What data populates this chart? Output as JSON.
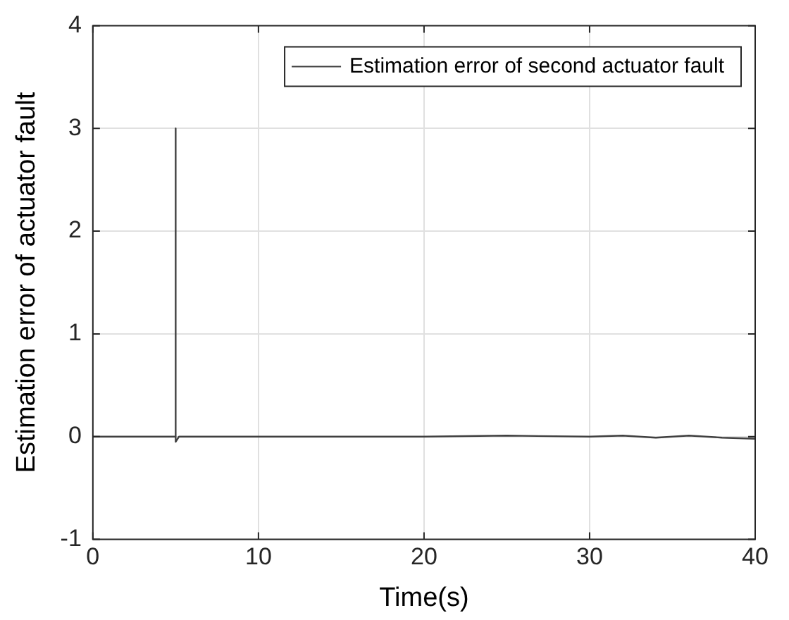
{
  "chart_data": {
    "type": "line",
    "xlabel": "Time(s)",
    "ylabel": "Estimation error of actuator fault",
    "x": [
      0,
      5,
      5,
      5,
      5.2,
      10,
      15,
      20,
      25,
      30,
      32,
      34,
      36,
      38,
      40
    ],
    "series": [
      {
        "name": "Estimation error of second actuator fault",
        "color": "#404040",
        "values": [
          0,
          0,
          3,
          -0.05,
          0,
          0,
          0,
          0,
          0.01,
          0,
          0.01,
          -0.01,
          0.01,
          -0.01,
          -0.02
        ]
      }
    ],
    "xlim": [
      0,
      40
    ],
    "ylim": [
      -1,
      4
    ],
    "xticks": [
      0,
      10,
      20,
      30,
      40
    ],
    "yticks": [
      -1,
      0,
      1,
      2,
      3,
      4
    ],
    "grid": true,
    "legend": "top right",
    "marker": "none",
    "line_style": "solid"
  }
}
